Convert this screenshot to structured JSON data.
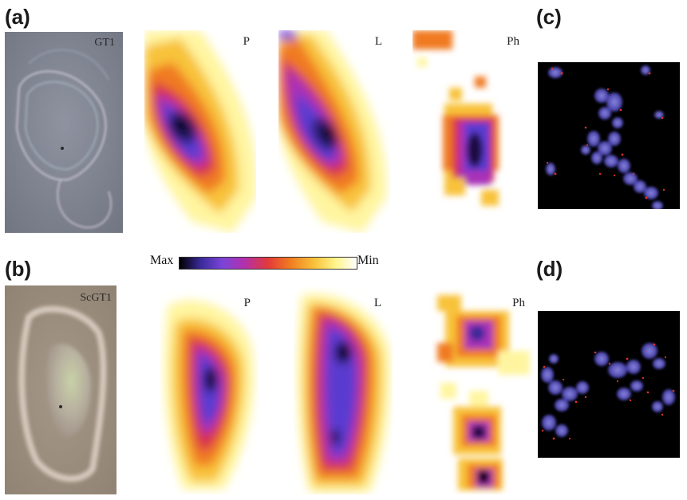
{
  "panels": {
    "a": "(a)",
    "b": "(b)",
    "c": "(c)",
    "d": "(d)"
  },
  "row_a": {
    "micrograph_label": "GT1",
    "maps": [
      "P",
      "L",
      "Ph"
    ]
  },
  "row_b": {
    "micrograph_label": "ScGT1",
    "maps": [
      "P",
      "L",
      "Ph"
    ]
  },
  "colorbar": {
    "min_label": "Min",
    "max_label": "Max",
    "colors": [
      "#000000",
      "#3a2a9a",
      "#7a45d8",
      "#b030b0",
      "#e23a3a",
      "#f07a20",
      "#f8c23a",
      "#fff58a",
      "#ffffff"
    ]
  }
}
